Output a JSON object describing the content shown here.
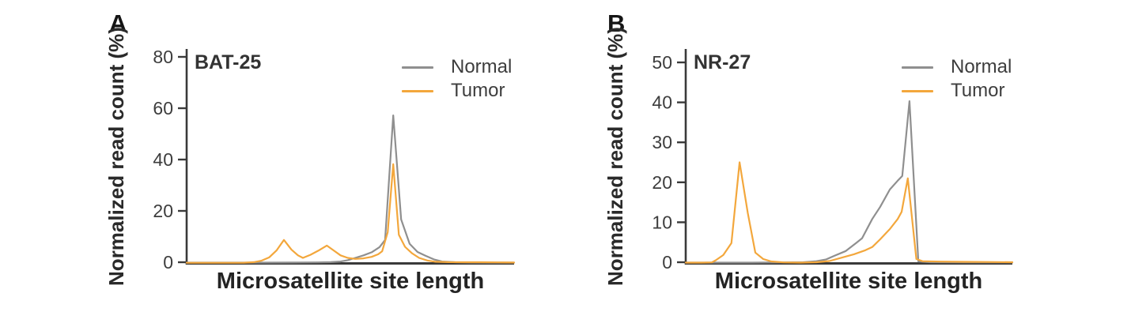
{
  "figure": {
    "background": "#ffffff",
    "axis_color": "#3a3a3a",
    "text_color": "#3d3d3d"
  },
  "chart_data": [
    {
      "type": "line",
      "panel_label": "A",
      "title": "BAT-25",
      "xlabel": "Microsatellite site length",
      "ylabel": "Normalized read count (%)",
      "ylim": [
        0,
        83
      ],
      "yticks": [
        0,
        20,
        40,
        60,
        80
      ],
      "xticks": [],
      "grid": false,
      "legend_position": "top-right",
      "x_unit": "fraction_of_x_axis",
      "series": [
        {
          "name": "Normal",
          "color": "#8f8f8f",
          "points": [
            [
              0.0,
              0.15
            ],
            [
              0.08,
              0.15
            ],
            [
              0.16,
              0.15
            ],
            [
              0.24,
              0.15
            ],
            [
              0.32,
              0.18
            ],
            [
              0.4,
              0.25
            ],
            [
              0.44,
              0.35
            ],
            [
              0.47,
              0.6
            ],
            [
              0.492,
              1.1
            ],
            [
              0.515,
              2.0
            ],
            [
              0.54,
              3.0
            ],
            [
              0.565,
              4.2
            ],
            [
              0.589,
              6.2
            ],
            [
              0.606,
              9.0
            ],
            [
              0.631,
              57.5
            ],
            [
              0.655,
              17.0
            ],
            [
              0.681,
              7.5
            ],
            [
              0.705,
              4.3
            ],
            [
              0.73,
              2.8
            ],
            [
              0.755,
              1.4
            ],
            [
              0.78,
              0.6
            ],
            [
              0.82,
              0.3
            ],
            [
              0.87,
              0.2
            ],
            [
              0.93,
              0.15
            ],
            [
              1.0,
              0.15
            ]
          ]
        },
        {
          "name": "Tumor",
          "color": "#f3a73c",
          "points": [
            [
              0.0,
              0.1
            ],
            [
              0.1,
              0.1
            ],
            [
              0.175,
              0.12
            ],
            [
              0.205,
              0.35
            ],
            [
              0.228,
              0.9
            ],
            [
              0.252,
              2.2
            ],
            [
              0.275,
              5.0
            ],
            [
              0.297,
              9.0
            ],
            [
              0.32,
              5.2
            ],
            [
              0.34,
              3.0
            ],
            [
              0.355,
              2.0
            ],
            [
              0.378,
              3.2
            ],
            [
              0.402,
              4.8
            ],
            [
              0.428,
              6.8
            ],
            [
              0.45,
              4.8
            ],
            [
              0.47,
              3.0
            ],
            [
              0.492,
              2.0
            ],
            [
              0.515,
              1.6
            ],
            [
              0.54,
              1.8
            ],
            [
              0.565,
              2.4
            ],
            [
              0.585,
              3.4
            ],
            [
              0.597,
              4.6
            ],
            [
              0.614,
              12.0
            ],
            [
              0.631,
              38.5
            ],
            [
              0.648,
              11.0
            ],
            [
              0.667,
              6.3
            ],
            [
              0.688,
              3.8
            ],
            [
              0.71,
              2.0
            ],
            [
              0.735,
              1.0
            ],
            [
              0.76,
              0.5
            ],
            [
              0.8,
              0.35
            ],
            [
              0.85,
              0.3
            ],
            [
              0.9,
              0.3
            ],
            [
              0.95,
              0.25
            ],
            [
              1.0,
              0.2
            ]
          ]
        }
      ]
    },
    {
      "type": "line",
      "panel_label": "B",
      "title": "NR-27",
      "xlabel": "Microsatellite site length",
      "ylabel": "Normalized read count (%)",
      "ylim": [
        0,
        53
      ],
      "yticks": [
        0,
        10,
        20,
        30,
        40,
        50
      ],
      "xticks": [],
      "grid": false,
      "legend_position": "top-right",
      "x_unit": "fraction_of_x_axis",
      "series": [
        {
          "name": "Normal",
          "color": "#8f8f8f",
          "points": [
            [
              0.0,
              0.1
            ],
            [
              0.1,
              0.1
            ],
            [
              0.2,
              0.1
            ],
            [
              0.3,
              0.15
            ],
            [
              0.36,
              0.2
            ],
            [
              0.4,
              0.45
            ],
            [
              0.43,
              0.9
            ],
            [
              0.455,
              1.8
            ],
            [
              0.49,
              3.0
            ],
            [
              0.523,
              5.1
            ],
            [
              0.54,
              6.2
            ],
            [
              0.571,
              11.0
            ],
            [
              0.595,
              14.0
            ],
            [
              0.625,
              18.4
            ],
            [
              0.649,
              20.6
            ],
            [
              0.663,
              21.8
            ],
            [
              0.685,
              40.5
            ],
            [
              0.712,
              0.4
            ],
            [
              0.75,
              0.2
            ],
            [
              0.85,
              0.15
            ],
            [
              1.0,
              0.15
            ]
          ]
        },
        {
          "name": "Tumor",
          "color": "#f3a73c",
          "points": [
            [
              0.0,
              0.1
            ],
            [
              0.05,
              0.1
            ],
            [
              0.08,
              0.15
            ],
            [
              0.092,
              0.7
            ],
            [
              0.115,
              2.0
            ],
            [
              0.14,
              5.0
            ],
            [
              0.165,
              25.2
            ],
            [
              0.19,
              12.5
            ],
            [
              0.213,
              2.6
            ],
            [
              0.237,
              1.0
            ],
            [
              0.262,
              0.4
            ],
            [
              0.3,
              0.15
            ],
            [
              0.35,
              0.1
            ],
            [
              0.4,
              0.2
            ],
            [
              0.44,
              0.5
            ],
            [
              0.48,
              1.4
            ],
            [
              0.515,
              2.2
            ],
            [
              0.55,
              3.2
            ],
            [
              0.571,
              4.0
            ],
            [
              0.595,
              5.9
            ],
            [
              0.625,
              8.5
            ],
            [
              0.649,
              11.0
            ],
            [
              0.661,
              12.8
            ],
            [
              0.68,
              21.2
            ],
            [
              0.706,
              1.0
            ],
            [
              0.725,
              0.45
            ],
            [
              0.78,
              0.35
            ],
            [
              0.85,
              0.3
            ],
            [
              0.92,
              0.25
            ],
            [
              1.0,
              0.2
            ]
          ]
        }
      ]
    }
  ]
}
